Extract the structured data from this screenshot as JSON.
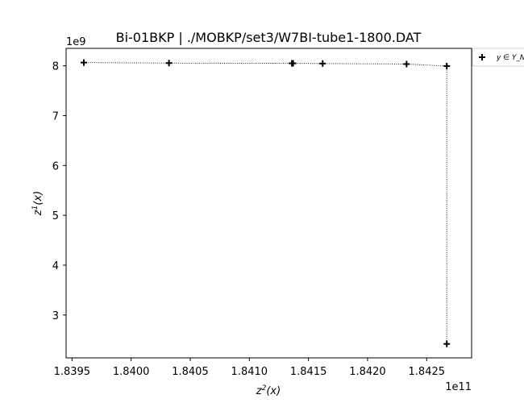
{
  "chart_data": {
    "type": "scatter",
    "title": "Bi-01BKP | ./MOBKP/set3/W7BI-tube1-1800.DAT",
    "xlabel_base": "z",
    "xlabel_sup": "2",
    "xlabel_tail": "(x)",
    "ylabel_base": "z",
    "ylabel_sup": "1",
    "ylabel_tail": "(x)",
    "x_multiplier": "1e11",
    "y_multiplier": "1e9",
    "xlim": [
      183945000000,
      184288000000
    ],
    "ylim": [
      2140000000,
      8350000000
    ],
    "xticks": [
      183950000000,
      184000000000,
      184050000000,
      184100000000,
      184150000000,
      184200000000,
      184250000000
    ],
    "xtick_labels": [
      "1.8395",
      "1.8400",
      "1.8405",
      "1.8410",
      "1.8415",
      "1.8420",
      "1.8425"
    ],
    "yticks": [
      3000000000,
      4000000000,
      5000000000,
      6000000000,
      7000000000,
      8000000000
    ],
    "ytick_labels": [
      "3",
      "4",
      "5",
      "6",
      "7",
      "8"
    ],
    "grid": false,
    "legend_position": "outside-top-right",
    "series": [
      {
        "name": "y ∈ Y_N",
        "marker": "plus",
        "color": "#000000",
        "connect_line": "dotted",
        "points": [
          {
            "x": 183960000000,
            "y": 8065000000
          },
          {
            "x": 184032000000,
            "y": 8055000000
          },
          {
            "x": 184136000000,
            "y": 8050000000
          },
          {
            "x": 184137000000,
            "y": 8050000000
          },
          {
            "x": 184162000000,
            "y": 8045000000
          },
          {
            "x": 184233000000,
            "y": 8035000000
          },
          {
            "x": 184267000000,
            "y": 7995000000
          },
          {
            "x": 184267000000,
            "y": 2420000000
          }
        ]
      }
    ]
  }
}
